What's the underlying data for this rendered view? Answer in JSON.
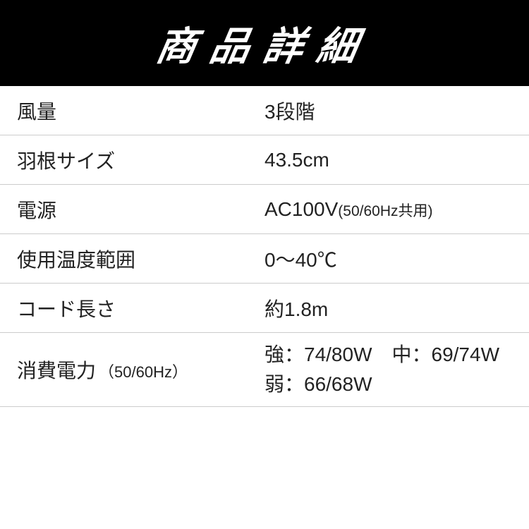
{
  "header": {
    "title": "商品詳細"
  },
  "table": {
    "rows": [
      {
        "label": "風量",
        "label_sub": "",
        "value": "3段階",
        "value_sub": ""
      },
      {
        "label": "羽根サイズ",
        "label_sub": "",
        "value": "43.5cm",
        "value_sub": ""
      },
      {
        "label": "電源",
        "label_sub": "",
        "value": "AC100V",
        "value_sub": "(50/60Hz共用)"
      },
      {
        "label": "使用温度範囲",
        "label_sub": "",
        "value": "0～40℃",
        "value_sub": ""
      },
      {
        "label": "コード長さ",
        "label_sub": "",
        "value": "約1.8m",
        "value_sub": ""
      },
      {
        "label": "消費電力",
        "label_sub": "（50/60Hz）",
        "value_line1": "強：74/80W　中：69/74W",
        "value_line2": "弱：66/68W"
      }
    ]
  },
  "colors": {
    "header_bg": "#000000",
    "header_text": "#ffffff",
    "border": "#cccccc",
    "text": "#222222",
    "bg": "#ffffff"
  },
  "typography": {
    "header_fontsize": 56,
    "label_fontsize": 28,
    "value_fontsize": 28,
    "sub_fontsize": 21
  }
}
